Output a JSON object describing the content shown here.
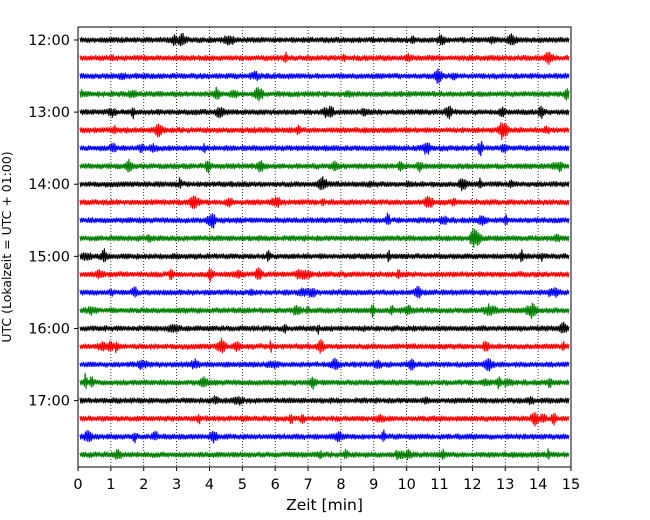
{
  "chart_data": {
    "type": "line",
    "title": "",
    "xlabel": "Zeit  [min]",
    "ylabel": "UTC (Lokalzeit = UTC + 01:00)",
    "xlim": [
      0,
      15
    ],
    "x_ticks": [
      "0",
      "1",
      "2",
      "3",
      "4",
      "5",
      "6",
      "7",
      "8",
      "9",
      "10",
      "11",
      "12",
      "13",
      "14",
      "15"
    ],
    "y_tick_labels": [
      "12:00",
      "13:00",
      "14:00",
      "15:00",
      "16:00",
      "17:00"
    ],
    "grid": "vertical-dotted",
    "trace_interval_minutes": 15,
    "start_time": "12:00",
    "color_cycle": [
      "#000000",
      "#ff0000",
      "#0000ff",
      "#008000"
    ],
    "traces": [
      "12:00",
      "12:15",
      "12:30",
      "12:45",
      "13:00",
      "13:15",
      "13:30",
      "13:45",
      "14:00",
      "14:15",
      "14:30",
      "14:45",
      "15:00",
      "15:15",
      "15:30",
      "15:45",
      "16:00",
      "16:15",
      "16:30",
      "16:45",
      "17:00",
      "17:15",
      "17:30",
      "17:45"
    ]
  }
}
